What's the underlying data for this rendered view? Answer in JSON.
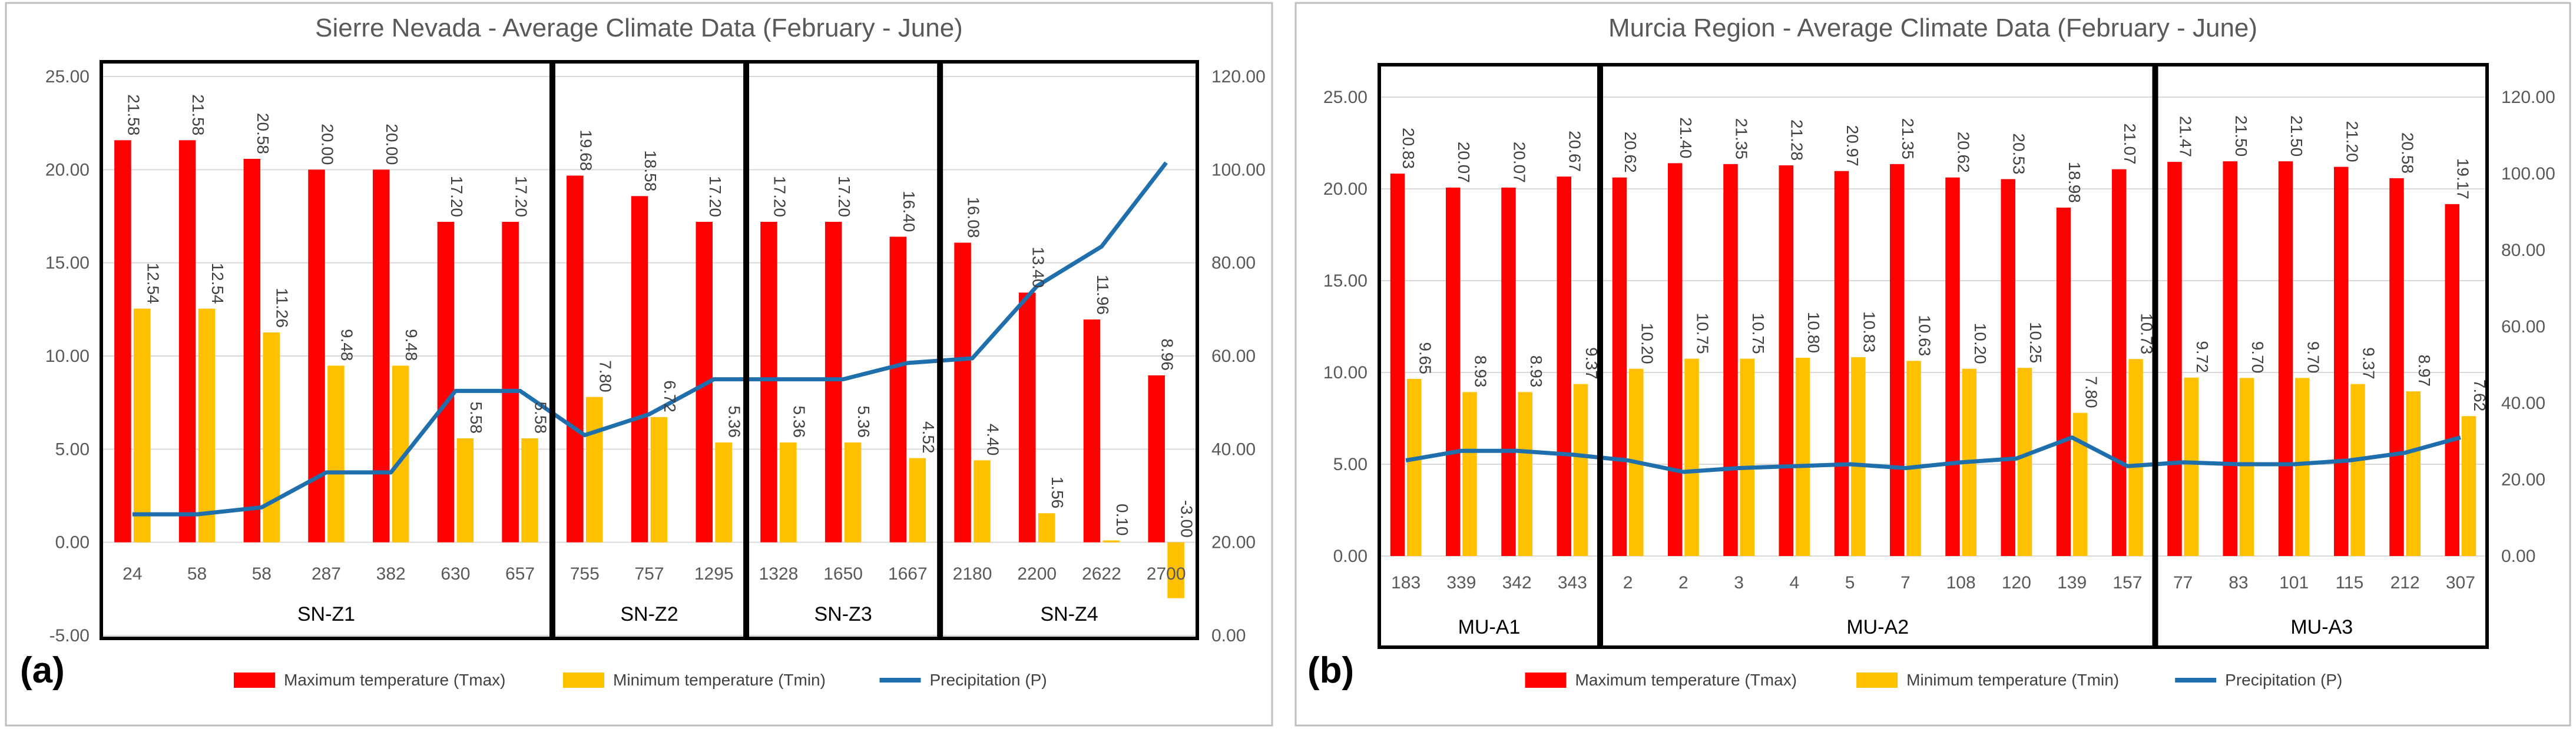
{
  "chart_data": [
    {
      "type": "bar",
      "panel_label": "(a)",
      "title": "Sierre Nevada - Average Climate Data (February - June)",
      "categories": [
        "24",
        "58",
        "58",
        "287",
        "382",
        "630",
        "657",
        "755",
        "757",
        "1295",
        "1328",
        "1650",
        "1667",
        "2180",
        "2200",
        "2622",
        "2700"
      ],
      "series": [
        {
          "name": "Maximum temperature (Tmax)",
          "kind": "bar",
          "axis": "left",
          "color": "#ff0000",
          "values": [
            21.58,
            21.58,
            20.58,
            20.0,
            20.0,
            17.2,
            17.2,
            19.68,
            18.58,
            17.2,
            17.2,
            17.2,
            16.4,
            16.08,
            13.4,
            11.96,
            8.96
          ],
          "labels": [
            "21.58",
            "21.58",
            "20.58",
            "20.00",
            "20.00",
            "17.20",
            "17.20",
            "19.68",
            "18.58",
            "17.20",
            "17.20",
            "17.20",
            "16.40",
            "16.08",
            "13.40",
            "11.96",
            "8.96"
          ]
        },
        {
          "name": "Minimum temperature (Tmin)",
          "kind": "bar",
          "axis": "left",
          "color": "#ffc000",
          "values": [
            12.54,
            12.54,
            11.26,
            9.48,
            9.48,
            5.58,
            5.58,
            7.8,
            6.72,
            5.36,
            5.36,
            5.36,
            4.52,
            4.4,
            1.56,
            0.1,
            -3.0
          ],
          "labels": [
            "12.54",
            "12.54",
            "11.26",
            "9.48",
            "9.48",
            "5.58",
            "5.58",
            "7.80",
            "6.72",
            "5.36",
            "5.36",
            "5.36",
            "4.52",
            "4.40",
            "1.56",
            "0.10",
            "-3.00"
          ]
        },
        {
          "name": "Precipitation (P)",
          "kind": "line",
          "axis": "right",
          "color": "#1f6fad",
          "values": [
            26,
            26,
            27.5,
            35,
            35,
            52.5,
            52.5,
            43,
            47.5,
            55,
            55,
            55,
            58.5,
            59.5,
            75,
            83.5,
            101.5
          ]
        }
      ],
      "y_left": {
        "min": -5,
        "max": 25,
        "step": 5,
        "ticks": [
          "-5.00",
          "0.00",
          "5.00",
          "10.00",
          "15.00",
          "20.00",
          "25.00"
        ]
      },
      "y_right": {
        "min": 0,
        "max": 120,
        "step": 20,
        "ticks": [
          "0.00",
          "20.00",
          "40.00",
          "60.00",
          "80.00",
          "100.00",
          "120.00"
        ]
      },
      "zones": [
        {
          "label": "SN-Z1",
          "start": 0,
          "end": 6
        },
        {
          "label": "SN-Z2",
          "start": 7,
          "end": 9
        },
        {
          "label": "SN-Z3",
          "start": 10,
          "end": 12
        },
        {
          "label": "SN-Z4",
          "start": 13,
          "end": 16
        }
      ],
      "legend": [
        "Maximum temperature (Tmax)",
        "Minimum temperature (Tmin)",
        "Precipitation (P)"
      ],
      "legend_position": "bottom"
    },
    {
      "type": "bar",
      "panel_label": "(b)",
      "title": "Murcia Region - Average Climate Data (February - June)",
      "categories": [
        "183",
        "339",
        "342",
        "343",
        "2",
        "2",
        "3",
        "4",
        "5",
        "7",
        "108",
        "120",
        "139",
        "157",
        "77",
        "83",
        "101",
        "115",
        "212",
        "307"
      ],
      "series": [
        {
          "name": "Maximum temperature (Tmax)",
          "kind": "bar",
          "axis": "left",
          "color": "#ff0000",
          "values": [
            20.83,
            20.07,
            20.07,
            20.67,
            20.62,
            21.4,
            21.35,
            21.28,
            20.97,
            21.35,
            20.62,
            20.53,
            18.98,
            21.07,
            21.47,
            21.5,
            21.5,
            21.2,
            20.58,
            19.17
          ],
          "labels": [
            "20.83",
            "20.07",
            "20.07",
            "20.67",
            "20.62",
            "21.40",
            "21.35",
            "21.28",
            "20.97",
            "21.35",
            "20.62",
            "20.53",
            "18.98",
            "21.07",
            "21.47",
            "21.50",
            "21.50",
            "21.20",
            "20.58",
            "19.17"
          ]
        },
        {
          "name": "Minimum temperature (Tmin)",
          "kind": "bar",
          "axis": "left",
          "color": "#ffc000",
          "values": [
            9.65,
            8.93,
            8.93,
            9.37,
            10.2,
            10.75,
            10.75,
            10.8,
            10.83,
            10.63,
            10.2,
            10.25,
            7.8,
            10.73,
            9.72,
            9.7,
            9.7,
            9.37,
            8.97,
            7.62
          ],
          "labels": [
            "9.65",
            "8.93",
            "8.93",
            "9.37",
            "10.20",
            "10.75",
            "10.75",
            "10.80",
            "10.83",
            "10.63",
            "10.20",
            "10.25",
            "7.80",
            "10.73",
            "9.72",
            "9.70",
            "9.70",
            "9.37",
            "8.97",
            "7.62"
          ]
        },
        {
          "name": "Precipitation (P)",
          "kind": "line",
          "axis": "right",
          "color": "#1f6fad",
          "values": [
            25,
            27.5,
            27.5,
            26.5,
            25,
            22,
            23,
            23.5,
            24,
            23,
            24.5,
            25.5,
            31,
            23.5,
            24.5,
            24,
            24,
            25,
            27,
            31
          ]
        }
      ],
      "y_left": {
        "min": 0,
        "max": 25,
        "step": 5,
        "ticks": [
          "0.00",
          "5.00",
          "10.00",
          "15.00",
          "20.00",
          "25.00"
        ]
      },
      "y_right": {
        "min": 0,
        "max": 120,
        "step": 20,
        "ticks": [
          "0.00",
          "20.00",
          "40.00",
          "60.00",
          "80.00",
          "100.00",
          "120.00"
        ]
      },
      "zones": [
        {
          "label": "MU-A1",
          "start": 0,
          "end": 3
        },
        {
          "label": "MU-A2",
          "start": 4,
          "end": 13
        },
        {
          "label": "MU-A3",
          "start": 14,
          "end": 19
        }
      ],
      "legend": [
        "Maximum temperature (Tmax)",
        "Minimum temperature (Tmin)",
        "Precipitation (P)"
      ],
      "legend_position": "bottom"
    }
  ]
}
